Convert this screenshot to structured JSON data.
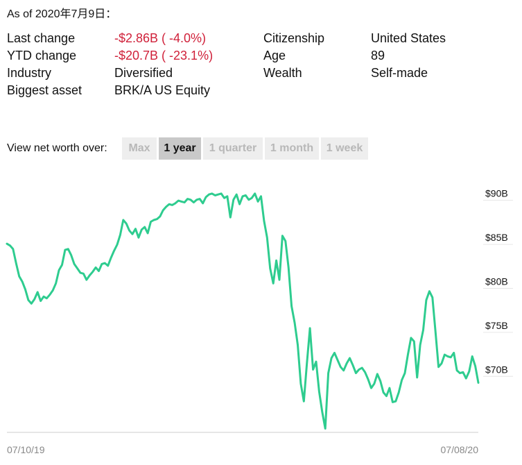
{
  "as_of": "As of 2020年7月9日：",
  "stats": [
    {
      "k1": "Last change",
      "v1": "-$2.86B ( -4.0%)",
      "v1_negative": true,
      "k2": "Citizenship",
      "v2": "United States"
    },
    {
      "k1": "YTD change",
      "v1": "-$20.7B ( -23.1%)",
      "v1_negative": true,
      "k2": "Age",
      "v2": "89"
    },
    {
      "k1": "Industry",
      "v1": "Diversified",
      "v1_negative": false,
      "k2": "Wealth",
      "v2": "Self-made"
    },
    {
      "k1": "Biggest asset",
      "v1": "BRK/A US Equity",
      "v1_negative": false,
      "k2": "",
      "v2": ""
    }
  ],
  "range": {
    "label": "View net worth over:",
    "buttons": [
      "Max",
      "1 year",
      "1 quarter",
      "1 month",
      "1 week"
    ],
    "active": "1 year"
  },
  "colors": {
    "line": "#2ecc8f",
    "negative": "#d0213a",
    "axis": "#cccccc"
  },
  "chart_data": {
    "type": "line",
    "title": "",
    "xlabel": "",
    "ylabel": "",
    "ylim": [
      63,
      91
    ],
    "y_ticks": [
      70,
      75,
      80,
      85,
      90
    ],
    "y_tick_labels": [
      "$70B",
      "$75B",
      "$80B",
      "$85B",
      "$90B"
    ],
    "x_tick_labels": [
      "07/10/19",
      "07/08/20"
    ],
    "grid": false,
    "series": [
      {
        "values": [
          84.2,
          84.0,
          83.6,
          82.0,
          80.5,
          79.9,
          79.0,
          77.8,
          77.4,
          77.9,
          78.7,
          77.7,
          78.2,
          78.0,
          78.4,
          78.9,
          79.7,
          81.2,
          81.8,
          83.5,
          83.6,
          82.9,
          81.9,
          81.4,
          80.9,
          80.8,
          80.1,
          80.6,
          81.0,
          81.5,
          81.1,
          81.9,
          82.0,
          81.7,
          82.6,
          83.4,
          84.1,
          85.2,
          86.9,
          86.5,
          85.7,
          85.3,
          85.9,
          84.9,
          85.8,
          86.1,
          85.4,
          86.7,
          86.9,
          87.0,
          87.3,
          88.0,
          88.4,
          88.7,
          88.6,
          88.8,
          89.1,
          89.0,
          88.9,
          89.3,
          89.2,
          88.9,
          89.2,
          89.3,
          88.8,
          89.5,
          89.8,
          89.9,
          89.7,
          89.8,
          89.9,
          89.4,
          89.6,
          87.2,
          89.2,
          89.8,
          88.7,
          89.6,
          89.7,
          89.2,
          89.4,
          89.9,
          89.0,
          89.6,
          86.8,
          84.9,
          81.4,
          79.7,
          82.3,
          80.1,
          85.1,
          84.5,
          81.5,
          77.1,
          75.2,
          72.7,
          68.3,
          66.3,
          70.6,
          74.6,
          69.9,
          70.8,
          67.4,
          65.1,
          63.2,
          69.5,
          71.2,
          71.8,
          71.0,
          70.2,
          69.8,
          70.6,
          71.2,
          70.4,
          69.5,
          69.9,
          70.1,
          69.6,
          68.8,
          67.8,
          68.3,
          69.4,
          68.6,
          67.3,
          66.9,
          67.8,
          66.2,
          66.3,
          67.3,
          68.7,
          69.5,
          71.6,
          73.5,
          73.1,
          69.0,
          72.7,
          74.4,
          77.8,
          78.8,
          78.1,
          74.2,
          70.2,
          70.6,
          71.6,
          71.4,
          71.3,
          71.8,
          69.8,
          69.5,
          69.6,
          68.9,
          69.7,
          71.4,
          70.3,
          68.4
        ]
      }
    ]
  }
}
